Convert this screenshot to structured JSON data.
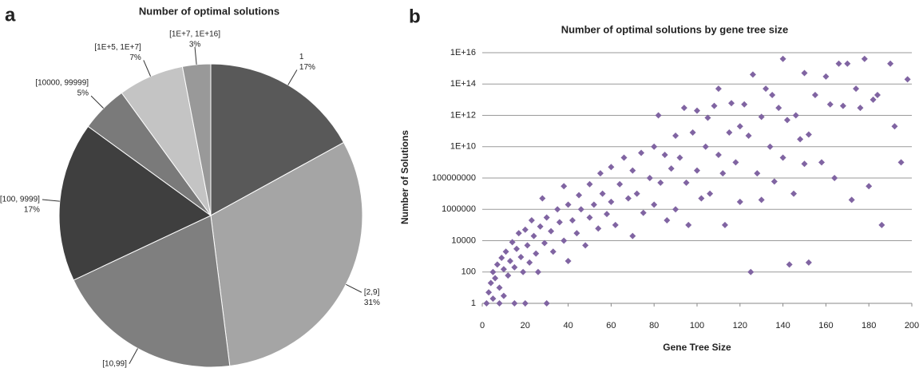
{
  "chart_data": [
    {
      "type": "pie",
      "panel_label": "a",
      "title": "Number of optimal solutions",
      "categories": [
        "1",
        "[2,9]",
        "[10,99]",
        "[100, 9999]",
        "[10000, 99999]",
        "[1E+5, 1E+7]",
        "[1E+7, 1E+16]"
      ],
      "values": [
        17,
        31,
        20,
        17,
        5,
        7,
        3
      ],
      "value_labels": [
        "17%",
        "31%",
        "20%",
        "17%",
        "5%",
        "7%",
        "3%"
      ],
      "colors": [
        "#595959",
        "#a5a5a5",
        "#7f7f7f",
        "#3f3f3f",
        "#7a7a7a",
        "#c4c4c4",
        "#999999"
      ]
    },
    {
      "type": "scatter",
      "panel_label": "b",
      "title": "Number of optimal solutions by gene tree size",
      "x_label": "Gene Tree Size",
      "y_label": "Number of Solutions",
      "xlim": [
        0,
        200
      ],
      "xticks": [
        0,
        20,
        40,
        60,
        80,
        100,
        120,
        140,
        160,
        180,
        200
      ],
      "ylim": [
        1,
        1e+16
      ],
      "log_y": true,
      "grid": true,
      "yticks": [
        1,
        100,
        10000,
        1000000,
        100000000,
        {
          "value": 10000000000.0,
          "label": "1E+10"
        },
        {
          "value": 1000000000000.0,
          "label": "1E+12"
        },
        {
          "value": 100000000000000.0,
          "label": "1E+14"
        },
        {
          "value": 1e+16,
          "label": "1E+16"
        }
      ],
      "series": [
        {
          "color": "#8064a2",
          "x": [
            2,
            3,
            4,
            5,
            5,
            6,
            7,
            8,
            8,
            9,
            10,
            10,
            11,
            12,
            13,
            14,
            15,
            15,
            16,
            17,
            18,
            19,
            20,
            20,
            21,
            22,
            23,
            24,
            25,
            26,
            27,
            28,
            29,
            30,
            30,
            32,
            33,
            35,
            36,
            38,
            38,
            40,
            40,
            42,
            44,
            45,
            46,
            48,
            50,
            50,
            52,
            54,
            55,
            56,
            58,
            60,
            60,
            62,
            64,
            66,
            68,
            70,
            70,
            72,
            74,
            75,
            78,
            80,
            80,
            82,
            83,
            85,
            86,
            88,
            90,
            90,
            92,
            94,
            95,
            96,
            98,
            100,
            100,
            102,
            104,
            105,
            106,
            108,
            110,
            110,
            112,
            113,
            115,
            116,
            118,
            120,
            120,
            122,
            124,
            125,
            126,
            128,
            130,
            130,
            132,
            134,
            135,
            136,
            138,
            140,
            140,
            142,
            143,
            145,
            146,
            148,
            150,
            150,
            152,
            152,
            155,
            158,
            160,
            162,
            164,
            166,
            168,
            170,
            172,
            174,
            176,
            178,
            180,
            182,
            184,
            186,
            190,
            192,
            195,
            198
          ],
          "values": [
            1,
            5,
            20,
            2,
            100,
            40,
            300,
            10,
            1,
            800,
            150,
            3,
            2000,
            60,
            500,
            8000,
            1,
            200,
            3000,
            30000,
            900,
            100,
            1,
            50000,
            5000,
            400,
            200000,
            20000,
            1500,
            100,
            80000,
            5000000,
            7000,
            1,
            300000,
            40000,
            2000,
            1000000,
            150000,
            30000000,
            10000,
            500,
            2000000,
            200000,
            30000,
            8000000,
            1000000,
            5000,
            40000000,
            300000,
            2000000,
            60000,
            200000000,
            10000000,
            500000,
            500000000,
            3000000,
            100000,
            40000000,
            2000000000,
            5000000,
            300000000,
            20000,
            10000000,
            4000000000,
            600000,
            100000000,
            10000000000.0,
            2000000,
            1000000000000.0,
            50000000,
            3000000000,
            200000,
            400000000,
            50000000000.0,
            1000000,
            2000000000,
            3000000000000.0,
            50000000,
            100000,
            80000000000.0,
            300000000,
            2000000000000.0,
            5000000,
            10000000000.0,
            700000000000.0,
            10000000,
            4000000000000.0,
            3000000000,
            50000000000000.0,
            200000000,
            100000,
            80000000000.0,
            6000000000000.0,
            1000000000,
            200000000000.0,
            3000000,
            5000000000000.0,
            50000000000.0,
            100,
            400000000000000.0,
            200000000,
            800000000000.0,
            4000000,
            50000000000000.0,
            10000000000.0,
            20000000000000.0,
            60000000,
            3000000000000.0,
            4000000000000000.0,
            2000000000,
            500000000000.0,
            300,
            10000000,
            1000000000000.0,
            30000000000.0,
            500000000000000.0,
            800000000,
            400,
            60000000000.0,
            20000000000000.0,
            1000000000,
            300000000000000.0,
            5000000000000.0,
            100000000,
            2000000000000000.0,
            4000000000000.0,
            2000000000000000.0,
            4000000,
            50000000000000.0,
            3000000000000.0,
            4000000000000000.0,
            30000000,
            10000000000000.0,
            20000000000000.0,
            100000,
            2000000000000000.0,
            200000000000.0,
            1000000000,
            200000000000000.0
          ]
        }
      ]
    }
  ]
}
